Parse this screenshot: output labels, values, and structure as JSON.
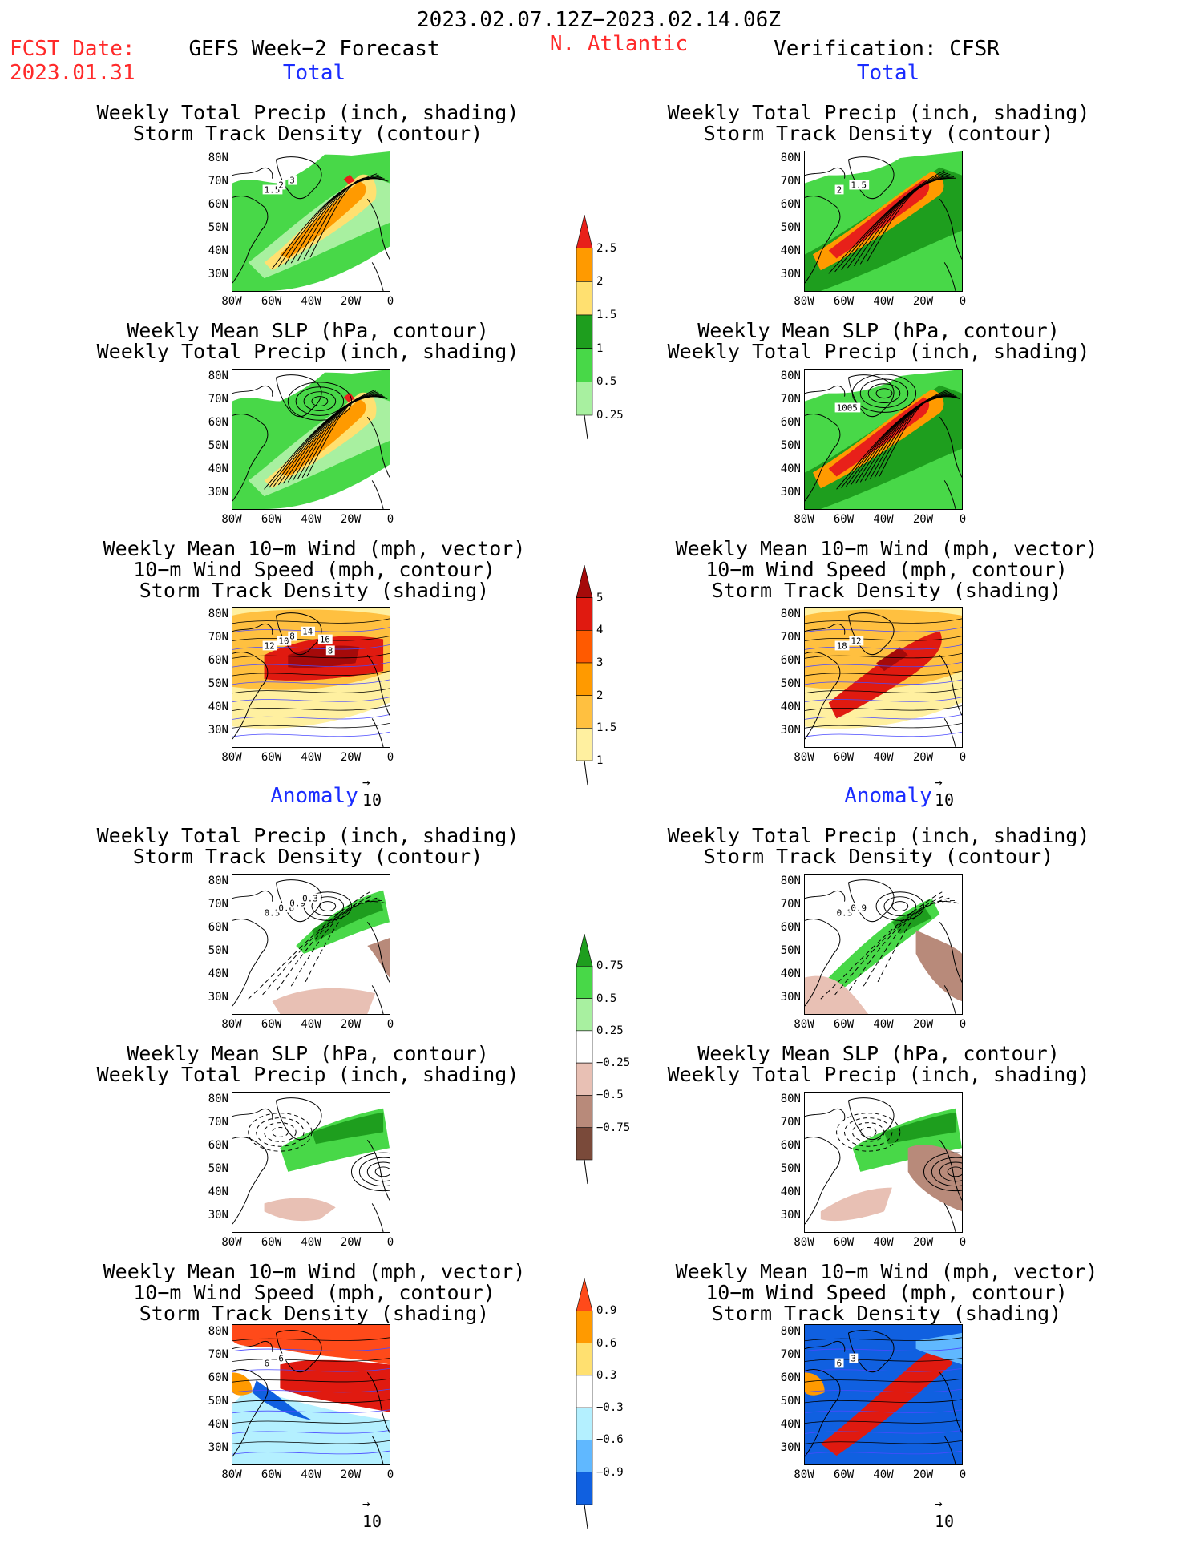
{
  "header": {
    "period": "2023.02.07.12Z−2023.02.14.06Z",
    "fcst_label": "FCST Date:",
    "fcst_date": "2023.01.31",
    "model_title": "GEFS Week−2 Forecast",
    "region": "N. Atlantic",
    "verification": "Verification: CFSR"
  },
  "sections": {
    "total_left": "Total",
    "total_right": "Total",
    "anomaly_left": "Anomaly",
    "anomaly_right": "Anomaly"
  },
  "titles": {
    "precip_storm": [
      "Weekly Total Precip (inch, shading)",
      "Storm Track Density (contour)"
    ],
    "slp_precip": [
      "Weekly Mean SLP (hPa, contour)",
      "Weekly Total Precip (inch, shading)"
    ],
    "wind_storm": [
      "Weekly Mean 10−m Wind (mph, vector)",
      "10−m Wind Speed (mph, contour)",
      "Storm Track Density (shading)"
    ]
  },
  "axes": {
    "lat_labels": [
      "80N",
      "70N",
      "60N",
      "50N",
      "40N",
      "30N"
    ],
    "lon_labels": [
      "80W",
      "60W",
      "40W",
      "20W",
      "0"
    ]
  },
  "vector_ref": "10",
  "colorbars": {
    "precip_total": {
      "labels": [
        "2.5",
        "2",
        "1.5",
        "1",
        "0.5",
        "0.25"
      ],
      "colors": [
        "#e8201a",
        "#ff9a00",
        "#ffe070",
        "#1e9e1e",
        "#48d848",
        "#a8f0a0"
      ]
    },
    "storm_total": {
      "labels": [
        "5",
        "4",
        "3",
        "2",
        "1.5",
        "1"
      ],
      "colors": [
        "#a50a0a",
        "#e01a10",
        "#ff5a00",
        "#ff9a00",
        "#ffc040",
        "#fff0a0"
      ]
    },
    "precip_anom": {
      "labels": [
        "0.75",
        "0.5",
        "0.25",
        "−0.25",
        "−0.5",
        "−0.75"
      ],
      "colors": [
        "#1e9e1e",
        "#48d848",
        "#a8f0a0",
        "#ffffff",
        "#e8c0b4",
        "#b88a7a",
        "#7a4a3a"
      ]
    },
    "storm_anom": {
      "labels": [
        "0.9",
        "0.6",
        "0.3",
        "−0.3",
        "−0.6",
        "−0.9"
      ],
      "colors": [
        "#ff4a1a",
        "#ff9a00",
        "#ffe070",
        "#ffffff",
        "#b4f0ff",
        "#60b8ff",
        "#1060e0"
      ]
    }
  },
  "map_annotations": {
    "l_precip_total": [
      "1.5",
      "2",
      "3"
    ],
    "r_precip_total": [
      "2",
      "1.5"
    ],
    "r_slp_total": [
      "1005"
    ],
    "l_wind_total": [
      "12",
      "10",
      "8",
      "14",
      "16",
      "8"
    ],
    "r_wind_total": [
      "18",
      "12"
    ],
    "l_precip_anom": [
      "0.3",
      "0.6",
      "0.9",
      "0.3"
    ],
    "r_precip_anom": [
      "0.3",
      "0.9"
    ],
    "l_wind_anom": [
      "6",
      "6"
    ],
    "r_wind_anom": [
      "6",
      "3"
    ]
  }
}
